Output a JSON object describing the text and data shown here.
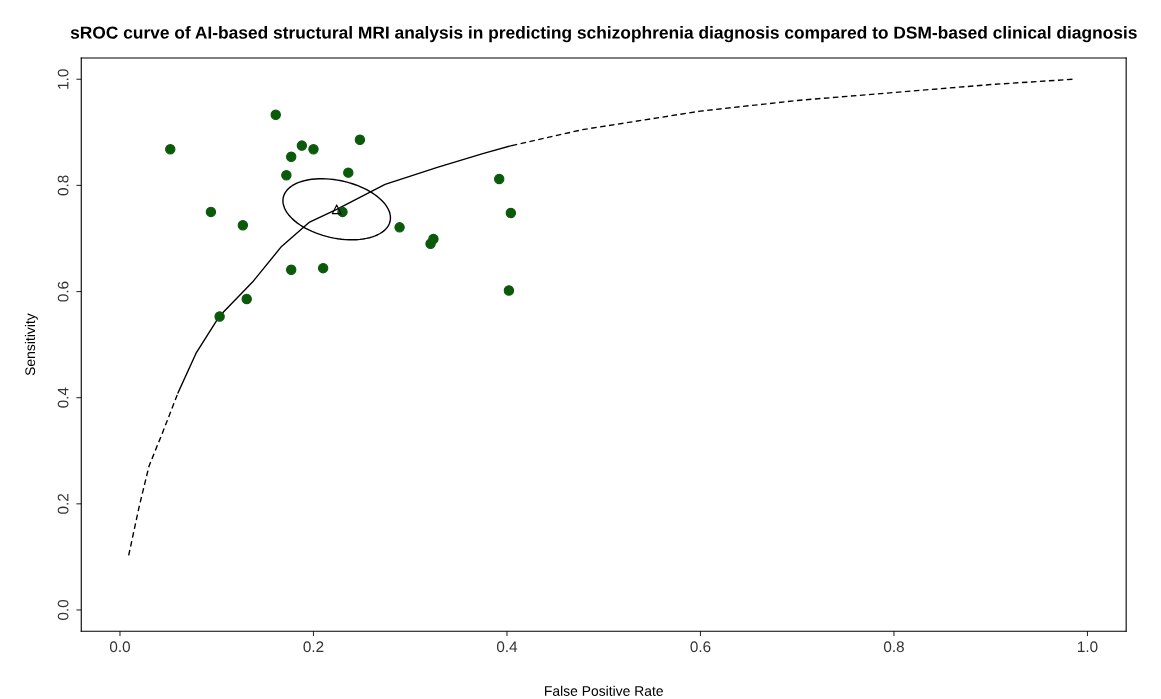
{
  "chart_data": {
    "type": "scatter",
    "title": "sROC curve of AI-based structural MRI analysis in predicting schizophrenia diagnosis compared to DSM-based clinical diagnosis",
    "xlabel": "False Positive Rate",
    "ylabel": "Sensitivity",
    "xlim": [
      -0.04,
      1.04
    ],
    "ylim": [
      -0.04,
      1.04
    ],
    "xticks": [
      {
        "value": 0,
        "label": "0.0"
      },
      {
        "value": 0.2,
        "label": "0.2"
      },
      {
        "value": 0.4,
        "label": "0.4"
      },
      {
        "value": 0.6,
        "label": "0.6"
      },
      {
        "value": 0.8,
        "label": "0.8"
      },
      {
        "value": 1,
        "label": "1.0"
      }
    ],
    "yticks": [
      {
        "value": 0,
        "label": "0.0"
      },
      {
        "value": 0.2,
        "label": "0.2"
      },
      {
        "value": 0.4,
        "label": "0.4"
      },
      {
        "value": 0.6,
        "label": "0.6"
      },
      {
        "value": 0.8,
        "label": "0.8"
      },
      {
        "value": 1,
        "label": "1.0"
      }
    ],
    "grid": false,
    "legend": false,
    "series": [
      {
        "type": "line",
        "line_style": "dashed",
        "color": "#000000",
        "x": [
          0.009,
          0.02,
          0.03,
          0.044,
          0.06
        ],
        "values": [
          0.103,
          0.196,
          0.271,
          0.334,
          0.409
        ]
      },
      {
        "type": "line",
        "line_style": "solid",
        "color": "#000000",
        "x": [
          0.06,
          0.079,
          0.103,
          0.138,
          0.167,
          0.196,
          0.224,
          0.274,
          0.328,
          0.375,
          0.405
        ],
        "values": [
          0.409,
          0.485,
          0.554,
          0.62,
          0.685,
          0.731,
          0.755,
          0.802,
          0.834,
          0.86,
          0.875
        ]
      },
      {
        "type": "line",
        "line_style": "dashed",
        "color": "#000000",
        "x": [
          0.405,
          0.478,
          0.6,
          0.7,
          0.8,
          0.9,
          0.985
        ],
        "values": [
          0.875,
          0.905,
          0.94,
          0.96,
          0.975,
          0.99,
          1.0
        ]
      },
      {
        "marker": "circle",
        "color": "#0b5a0b",
        "x": [
          0.052,
          0.161,
          0.188,
          0.2,
          0.177,
          0.248,
          0.172,
          0.236,
          0.094,
          0.127,
          0.23,
          0.289,
          0.321,
          0.324,
          0.177,
          0.21,
          0.131,
          0.103,
          0.392,
          0.404,
          0.402
        ],
        "values": [
          0.868,
          0.933,
          0.875,
          0.868,
          0.854,
          0.886,
          0.819,
          0.824,
          0.75,
          0.725,
          0.75,
          0.721,
          0.69,
          0.699,
          0.641,
          0.644,
          0.586,
          0.553,
          0.812,
          0.748,
          0.602
        ]
      },
      {
        "marker": "triangle",
        "color": "#000000",
        "x": [
          0.224
        ],
        "values": [
          0.755
        ]
      }
    ]
  }
}
